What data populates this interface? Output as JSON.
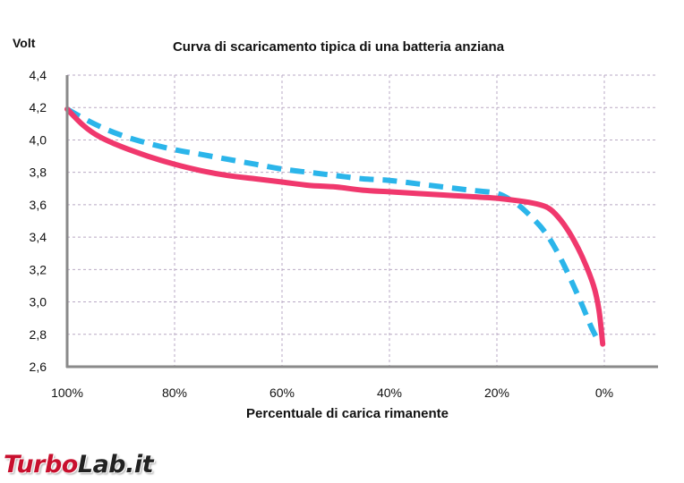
{
  "chart_data": {
    "type": "line",
    "title": "Curva di scaricamento tipica di una batteria anziana",
    "ylabel": "Volt",
    "xlabel": "Percentuale di carica rimanente",
    "x_reversed": true,
    "xlim": [
      100,
      0
    ],
    "ylim": [
      2.6,
      4.4
    ],
    "x_ticks": [
      100,
      80,
      60,
      40,
      20,
      0
    ],
    "x_tick_labels": [
      "100%",
      "80%",
      "60%",
      "40%",
      "20%",
      "0%"
    ],
    "y_ticks": [
      2.6,
      2.8,
      3.0,
      3.2,
      3.4,
      3.6,
      3.8,
      4.0,
      4.2,
      4.4
    ],
    "y_tick_labels": [
      "2,6",
      "2,8",
      "3,0",
      "3,2",
      "3,4",
      "3,6",
      "3,8",
      "4,0",
      "4,2",
      "4,4"
    ],
    "grid": true,
    "legend": "none",
    "series": [
      {
        "color": "#2bb5ea",
        "style": "dashed",
        "x": [
          100,
          95,
          90,
          85,
          80,
          75,
          70,
          65,
          60,
          55,
          50,
          45,
          40,
          35,
          30,
          25,
          20,
          17,
          15,
          12,
          10,
          8,
          6,
          4,
          2.5,
          1
        ],
        "y": [
          4.19,
          4.1,
          4.03,
          3.98,
          3.94,
          3.91,
          3.88,
          3.85,
          3.82,
          3.8,
          3.78,
          3.76,
          3.75,
          3.73,
          3.71,
          3.69,
          3.67,
          3.62,
          3.57,
          3.47,
          3.38,
          3.26,
          3.12,
          2.97,
          2.85,
          2.75
        ]
      },
      {
        "color": "#f0386d",
        "style": "solid",
        "x": [
          100,
          97,
          94,
          90,
          85,
          80,
          75,
          70,
          65,
          60,
          55,
          50,
          45,
          40,
          35,
          30,
          25,
          20,
          15,
          12,
          10,
          8,
          6,
          4,
          2,
          1,
          0.3
        ],
        "y": [
          4.19,
          4.09,
          4.02,
          3.96,
          3.9,
          3.85,
          3.81,
          3.78,
          3.76,
          3.74,
          3.72,
          3.71,
          3.69,
          3.68,
          3.67,
          3.66,
          3.65,
          3.64,
          3.62,
          3.6,
          3.57,
          3.5,
          3.4,
          3.27,
          3.1,
          2.95,
          2.74
        ]
      }
    ]
  },
  "watermark": {
    "part1": "Turbo",
    "part2": "Lab.it"
  }
}
